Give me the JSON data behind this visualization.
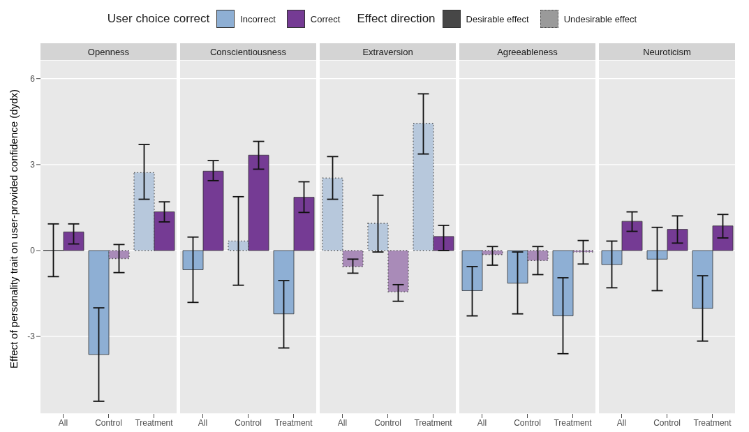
{
  "chart_data": [
    {
      "type": "bar",
      "title": "Openness",
      "ylabel": "Effect of personality trait on user-provided confidence (dydx)",
      "legend": "top",
      "legend_title": "User choice correct",
      "annotations": [
        "Effect direction",
        "Desirable effect",
        "Undesirable effect"
      ],
      "categories": [
        "All",
        "Control",
        "Treatment"
      ],
      "series": [
        {
          "name": "Incorrect",
          "color": "#8eafd4",
          "colors": [
            "#8eafd4",
            "#8eafd4",
            "#b7c8dc"
          ],
          "values": [
            0.01,
            -3.63,
            2.72
          ],
          "errors": [
            [
              -0.91,
              0.93
            ],
            [
              -5.26,
              -2.0
            ],
            [
              1.79,
              3.7
            ]
          ]
        },
        {
          "name": "Correct",
          "color": "#753b94",
          "colors": [
            "#753b94",
            "#a98bb8",
            "#753b94"
          ],
          "values": [
            0.65,
            -0.28,
            1.35
          ],
          "errors": [
            [
              0.23,
              0.93
            ],
            [
              -0.77,
              0.21
            ],
            [
              1.0,
              1.7
            ]
          ]
        }
      ],
      "ylim": [
        -5.7,
        6.65
      ],
      "yticks": [
        -3,
        0,
        3,
        6
      ],
      "grid": "y"
    },
    {
      "type": "bar",
      "title": "Conscientiousness",
      "categories": [
        "All",
        "Control",
        "Treatment"
      ],
      "series": [
        {
          "color": "#8eafd4",
          "colors": [
            "#8eafd4",
            "#b7c8dc",
            "#8eafd4"
          ],
          "values": [
            -0.67,
            0.33,
            -2.21
          ],
          "errors": [
            [
              -1.81,
              0.47
            ],
            [
              -1.21,
              1.88
            ],
            [
              -3.4,
              -1.05
            ]
          ]
        },
        {
          "color": "#753b94",
          "colors": [
            "#753b94",
            "#753b94",
            "#753b94"
          ],
          "values": [
            2.77,
            3.33,
            1.86
          ],
          "errors": [
            [
              2.44,
              3.14
            ],
            [
              2.84,
              3.81
            ],
            [
              1.33,
              2.4
            ]
          ]
        }
      ],
      "ylim": [
        -5.7,
        6.65
      ],
      "yticks": [
        -3,
        0,
        3,
        6
      ],
      "grid": "y",
      "tick_labels": "x"
    },
    {
      "type": "bar",
      "title": "Extraversion",
      "categories": [
        "All",
        "Control",
        "Treatment"
      ],
      "series": [
        {
          "color": "#8eafd4",
          "colors": [
            "#b7c8dc",
            "#b7c8dc",
            "#b7c8dc"
          ],
          "values": [
            2.53,
            0.95,
            4.44
          ],
          "errors": [
            [
              1.79,
              3.28
            ],
            [
              -0.05,
              1.93
            ],
            [
              3.37,
              5.47
            ]
          ]
        },
        {
          "color": "#753b94",
          "colors": [
            "#a98bb8",
            "#a98bb8",
            "#753b94"
          ],
          "values": [
            -0.56,
            -1.44,
            0.49
          ],
          "errors": [
            [
              -0.79,
              -0.3
            ],
            [
              -1.77,
              -1.19
            ],
            [
              0.0,
              0.88
            ]
          ]
        }
      ],
      "ylim": [
        -5.7,
        6.65
      ],
      "yticks": [
        -3,
        0,
        3,
        6
      ],
      "grid": "y",
      "tick_labels": "x"
    },
    {
      "type": "bar",
      "title": "Agreeableness",
      "categories": [
        "All",
        "Control",
        "Treatment"
      ],
      "series": [
        {
          "color": "#8eafd4",
          "colors": [
            "#8eafd4",
            "#8eafd4",
            "#8eafd4"
          ],
          "values": [
            -1.4,
            -1.14,
            -2.28
          ],
          "errors": [
            [
              -2.28,
              -0.56
            ],
            [
              -2.21,
              -0.05
            ],
            [
              -3.6,
              -0.95
            ]
          ]
        },
        {
          "color": "#753b94",
          "colors": [
            "#a98bb8",
            "#a98bb8",
            "#a98bb8"
          ],
          "values": [
            -0.14,
            -0.35,
            -0.05
          ],
          "errors": [
            [
              -0.51,
              0.14
            ],
            [
              -0.84,
              0.14
            ],
            [
              -0.47,
              0.35
            ]
          ]
        }
      ],
      "ylim": [
        -5.7,
        6.65
      ],
      "yticks": [
        -3,
        0,
        3,
        6
      ],
      "grid": "y",
      "tick_labels": "x"
    },
    {
      "type": "bar",
      "title": "Neuroticism",
      "categories": [
        "All",
        "Control",
        "Treatment"
      ],
      "series": [
        {
          "color": "#8eafd4",
          "colors": [
            "#8eafd4",
            "#8eafd4",
            "#8eafd4"
          ],
          "values": [
            -0.49,
            -0.3,
            -2.02
          ],
          "errors": [
            [
              -1.3,
              0.33
            ],
            [
              -1.4,
              0.81
            ],
            [
              -3.16,
              -0.88
            ]
          ]
        },
        {
          "color": "#753b94",
          "colors": [
            "#753b94",
            "#753b94",
            "#753b94"
          ],
          "values": [
            1.02,
            0.74,
            0.86
          ],
          "errors": [
            [
              0.67,
              1.35
            ],
            [
              0.26,
              1.21
            ],
            [
              0.44,
              1.26
            ]
          ]
        }
      ],
      "ylim": [
        -5.7,
        6.65
      ],
      "yticks": [
        -3,
        0,
        3,
        6
      ],
      "grid": "y",
      "tick_labels": "x"
    }
  ]
}
